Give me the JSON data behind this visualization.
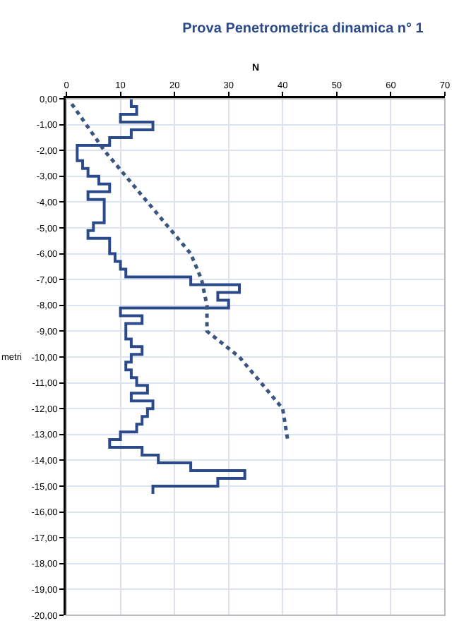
{
  "chart_data": {
    "type": "step",
    "title": "Prova Penetrometrica dinamica n° 1",
    "xlabel": "N",
    "ylabel": "metri",
    "xlim": [
      0,
      70
    ],
    "xticks": [
      0,
      10,
      20,
      30,
      40,
      50,
      60,
      70
    ],
    "ylim": [
      -20,
      0
    ],
    "yticks": [
      {
        "value": 0,
        "label": "0,00"
      },
      {
        "value": -1,
        "label": "-1,00"
      },
      {
        "value": -2,
        "label": "-2,00"
      },
      {
        "value": -3,
        "label": "-3,00"
      },
      {
        "value": -4,
        "label": "-4,00"
      },
      {
        "value": -5,
        "label": "-5,00"
      },
      {
        "value": -6,
        "label": "-6,00"
      },
      {
        "value": -7,
        "label": "-7,00"
      },
      {
        "value": -8,
        "label": "-8,00"
      },
      {
        "value": -9,
        "label": "-9,00"
      },
      {
        "value": -10,
        "label": "-10,00"
      },
      {
        "value": -11,
        "label": "-11,00"
      },
      {
        "value": -12,
        "label": "-12,00"
      },
      {
        "value": -13,
        "label": "-13,00"
      },
      {
        "value": -14,
        "label": "-14,00"
      },
      {
        "value": -15,
        "label": "-15,00"
      },
      {
        "value": -16,
        "label": "-16,00"
      },
      {
        "value": -17,
        "label": "-17,00"
      },
      {
        "value": -18,
        "label": "-18,00"
      },
      {
        "value": -19,
        "label": "-19,00"
      },
      {
        "value": -20,
        "label": "-20,00"
      }
    ],
    "grid": true,
    "marker": "none",
    "series": [
      {
        "color": "#2b4a8c",
        "line_style": "solid",
        "x": [
          12,
          13,
          10,
          16,
          12,
          8,
          2,
          2,
          3,
          4,
          6,
          8,
          4,
          7,
          7,
          7,
          5,
          4,
          8,
          8,
          9,
          10,
          11,
          23,
          32,
          28,
          30,
          10,
          14,
          11,
          11,
          12,
          14,
          12,
          11,
          12,
          13,
          15,
          12,
          16,
          15,
          14,
          13,
          10,
          8,
          14,
          17,
          23,
          33,
          28,
          16,
          16
        ],
        "values": [
          0,
          -0.3,
          -0.6,
          -0.9,
          -1.2,
          -1.5,
          -1.8,
          -2.1,
          -2.4,
          -2.7,
          -3,
          -3.3,
          -3.6,
          -3.9,
          -4.2,
          -4.5,
          -4.8,
          -5.1,
          -5.4,
          -5.7,
          -6,
          -6.3,
          -6.6,
          -6.9,
          -7.2,
          -7.5,
          -7.8,
          -8.1,
          -8.4,
          -8.7,
          -9,
          -9.3,
          -9.6,
          -9.9,
          -10.2,
          -10.5,
          -10.8,
          -11.1,
          -11.4,
          -11.7,
          -12,
          -12.3,
          -12.6,
          -12.9,
          -13.2,
          -13.5,
          -13.8,
          -14.1,
          -14.4,
          -14.7,
          -15,
          -15.3
        ]
      },
      {
        "type": "line",
        "color": "#3a5580",
        "line_style": "dotted",
        "x": [
          1,
          7,
          15,
          23,
          25,
          26,
          26,
          32,
          36,
          40,
          41
        ],
        "values": [
          -0.2,
          -2,
          -4,
          -6,
          -7,
          -8,
          -9,
          -10,
          -11,
          -12,
          -13.3
        ]
      }
    ]
  }
}
